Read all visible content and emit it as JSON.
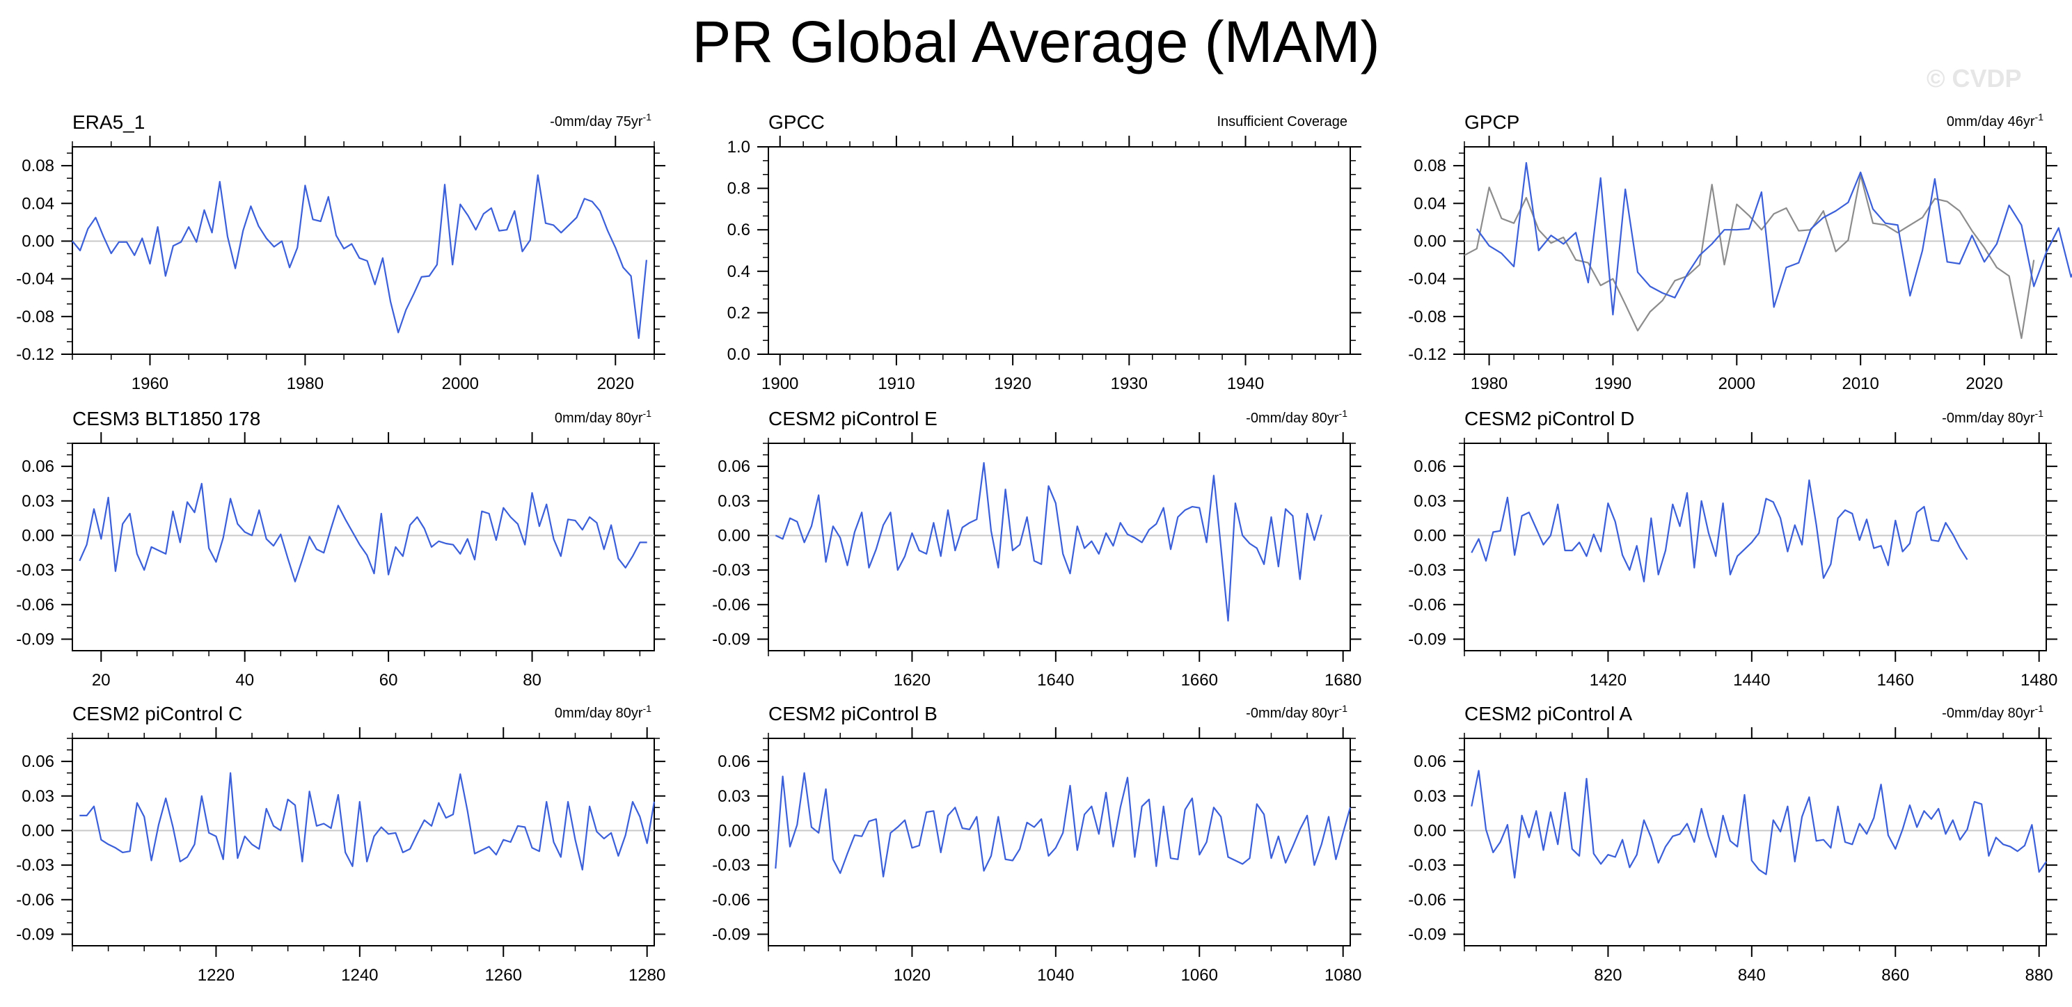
{
  "title": "PR Global Average (MAM)",
  "watermark": "© CVDP",
  "colors": {
    "series_primary": "#3a5fd9",
    "series_secondary": "#8c8c8c",
    "zero_line": "#c8c8c8"
  },
  "chart_data": [
    {
      "type": "line",
      "title": "ERA5_1",
      "trend_label": "-0mm/day 75yr",
      "trend_sup": "-1",
      "xlim": [
        1950,
        2025
      ],
      "ylim": [
        -0.12,
        0.1
      ],
      "xticks": [
        1960,
        1980,
        2000,
        2020
      ],
      "yticks": [
        "0.08",
        "0.04",
        "0.00",
        "-0.04",
        "-0.08",
        "-0.12"
      ],
      "x_start": 1950,
      "x_step": 1,
      "series": [
        {
          "values": [
            0.0,
            -0.01,
            0.013,
            0.025,
            0.005,
            -0.013,
            -0.001,
            -0.001,
            -0.015,
            0.003,
            -0.024,
            0.015,
            -0.037,
            -0.005,
            -0.001,
            0.015,
            -0.001,
            0.033,
            0.009,
            0.063,
            0.005,
            -0.029,
            0.011,
            0.037,
            0.016,
            0.003,
            -0.006,
            0.0,
            -0.028,
            -0.007,
            0.059,
            0.023,
            0.021,
            0.047,
            0.006,
            -0.008,
            -0.003,
            -0.018,
            -0.021,
            -0.046,
            -0.018,
            -0.064,
            -0.097,
            -0.073,
            -0.056,
            -0.038,
            -0.037,
            -0.025,
            0.06,
            -0.025,
            0.039,
            0.027,
            0.012,
            0.029,
            0.035,
            0.011,
            0.012,
            0.032,
            -0.011,
            0.001,
            0.07,
            0.019,
            0.017,
            0.009,
            0.017,
            0.025,
            0.045,
            0.042,
            0.032,
            0.011,
            -0.007,
            -0.028,
            -0.037,
            -0.103,
            -0.02
          ]
        }
      ]
    },
    {
      "type": "line",
      "title": "GPCC",
      "trend_label": "Insufficient Coverage",
      "xlim": [
        1899,
        1949
      ],
      "ylim": [
        0.0,
        1.0
      ],
      "xticks": [
        1900,
        1910,
        1920,
        1930,
        1940
      ],
      "yticks": [
        "1.0",
        "0.8",
        "0.6",
        "0.4",
        "0.2",
        "0.0"
      ],
      "x_start": 1900,
      "x_step": 1,
      "series": []
    },
    {
      "type": "line",
      "title": "GPCP",
      "trend_label": "0mm/day 46yr",
      "trend_sup": "-1",
      "xlim": [
        1978,
        2025
      ],
      "ylim": [
        -0.12,
        0.1
      ],
      "xticks": [
        1980,
        1990,
        2000,
        2010,
        2020
      ],
      "yticks": [
        "0.08",
        "0.04",
        "0.00",
        "-0.04",
        "-0.08",
        "-0.12"
      ],
      "x_start": 1979,
      "x_step": 1,
      "series": [
        {
          "color": "#8c8c8c",
          "x_start": 1978,
          "values": [
            -0.015,
            -0.008,
            0.057,
            0.024,
            0.019,
            0.046,
            0.012,
            -0.002,
            0.004,
            -0.02,
            -0.023,
            -0.047,
            -0.04,
            -0.067,
            -0.095,
            -0.075,
            -0.063,
            -0.042,
            -0.037,
            -0.025,
            0.06,
            -0.025,
            0.039,
            0.027,
            0.012,
            0.029,
            0.035,
            0.011,
            0.012,
            0.032,
            -0.011,
            0.001,
            0.07,
            0.019,
            0.017,
            0.009,
            0.017,
            0.025,
            0.045,
            0.042,
            0.032,
            0.011,
            -0.007,
            -0.028,
            -0.037,
            -0.103,
            -0.02
          ]
        },
        {
          "color": "#3a5fd9",
          "x_start": 1979,
          "values": [
            0.013,
            -0.005,
            -0.013,
            -0.027,
            0.083,
            -0.01,
            0.006,
            -0.003,
            0.009,
            -0.044,
            0.067,
            -0.078,
            0.055,
            -0.033,
            -0.048,
            -0.055,
            -0.06,
            -0.035,
            -0.015,
            -0.003,
            0.012,
            0.012,
            0.013,
            0.052,
            -0.07,
            -0.028,
            -0.023,
            0.013,
            0.025,
            0.032,
            0.041,
            0.073,
            0.034,
            0.019,
            0.017,
            -0.058,
            -0.01,
            0.066,
            -0.022,
            -0.024,
            0.006,
            -0.022,
            -0.003,
            0.038,
            0.017,
            -0.048,
            -0.012,
            0.014,
            -0.038,
            -0.011,
            -0.055,
            0.063
          ]
        }
      ]
    },
    {
      "type": "line",
      "title": "CESM3 BLT1850 178",
      "trend_label": "0mm/day 80yr",
      "trend_sup": "-1",
      "xlim": [
        16,
        97
      ],
      "ylim": [
        -0.1,
        0.08
      ],
      "xticks": [
        20,
        40,
        60,
        80
      ],
      "yticks": [
        "0.06",
        "0.03",
        "0.00",
        "-0.03",
        "-0.06",
        "-0.09"
      ],
      "x_start": 17,
      "x_step": 1,
      "series": [
        {
          "values": [
            -0.022,
            -0.008,
            0.023,
            -0.003,
            0.033,
            -0.031,
            0.01,
            0.019,
            -0.016,
            -0.03,
            -0.01,
            -0.013,
            -0.016,
            0.021,
            -0.006,
            0.029,
            0.02,
            0.045,
            -0.011,
            -0.023,
            -0.002,
            0.032,
            0.01,
            0.003,
            0.0,
            0.022,
            -0.003,
            -0.009,
            0.001,
            -0.02,
            -0.04,
            -0.021,
            -0.001,
            -0.012,
            -0.015,
            0.006,
            0.026,
            0.014,
            0.003,
            -0.008,
            -0.017,
            -0.033,
            0.019,
            -0.034,
            -0.01,
            -0.018,
            0.009,
            0.016,
            0.006,
            -0.01,
            -0.005,
            -0.007,
            -0.008,
            -0.016,
            -0.003,
            -0.021,
            0.021,
            0.019,
            -0.004,
            0.024,
            0.016,
            0.01,
            -0.008,
            0.037,
            0.008,
            0.027,
            -0.003,
            -0.018,
            0.014,
            0.013,
            0.005,
            0.016,
            0.011,
            -0.012,
            0.009,
            -0.02,
            -0.028,
            -0.018,
            -0.006,
            -0.006
          ]
        }
      ]
    },
    {
      "type": "line",
      "title": "CESM2 piControl E",
      "trend_label": "-0mm/day 80yr",
      "trend_sup": "-1",
      "xlim": [
        1600,
        1681
      ],
      "ylim": [
        -0.1,
        0.08
      ],
      "xticks": [
        1620,
        1640,
        1660,
        1680
      ],
      "yticks": [
        "0.06",
        "0.03",
        "0.00",
        "-0.03",
        "-0.06",
        "-0.09"
      ],
      "x_start": 1601,
      "x_step": 1,
      "series": [
        {
          "values": [
            0.0,
            -0.003,
            0.015,
            0.012,
            -0.006,
            0.008,
            0.035,
            -0.023,
            0.008,
            -0.002,
            -0.026,
            0.003,
            0.02,
            -0.028,
            -0.012,
            0.009,
            0.02,
            -0.03,
            -0.018,
            0.002,
            -0.013,
            -0.016,
            0.011,
            -0.018,
            0.022,
            -0.013,
            0.007,
            0.011,
            0.014,
            0.063,
            0.004,
            -0.028,
            0.04,
            -0.013,
            -0.008,
            0.016,
            -0.022,
            -0.025,
            0.043,
            0.028,
            -0.016,
            -0.033,
            0.008,
            -0.011,
            -0.005,
            -0.016,
            0.002,
            -0.009,
            0.011,
            0.001,
            -0.002,
            -0.006,
            0.005,
            0.01,
            0.024,
            -0.012,
            0.016,
            0.022,
            0.025,
            0.024,
            -0.006,
            0.052,
            -0.01,
            -0.074,
            0.028,
            0.0,
            -0.007,
            -0.011,
            -0.025,
            0.016,
            -0.027,
            0.023,
            0.017,
            -0.038,
            0.019,
            -0.004,
            0.018
          ]
        }
      ]
    },
    {
      "type": "line",
      "title": "CESM2 piControl D",
      "trend_label": "-0mm/day 80yr",
      "trend_sup": "-1",
      "xlim": [
        1400,
        1481
      ],
      "ylim": [
        -0.1,
        0.08
      ],
      "xticks": [
        1420,
        1440,
        1460,
        1480
      ],
      "yticks": [
        "0.06",
        "0.03",
        "0.00",
        "-0.03",
        "-0.06",
        "-0.09"
      ],
      "x_start": 1401,
      "x_step": 1,
      "series": [
        {
          "values": [
            -0.015,
            -0.003,
            -0.022,
            0.003,
            0.004,
            0.033,
            -0.017,
            0.017,
            0.02,
            0.006,
            -0.008,
            0.0,
            0.027,
            -0.013,
            -0.013,
            -0.006,
            -0.018,
            0.001,
            -0.014,
            0.028,
            0.012,
            -0.017,
            -0.03,
            -0.009,
            -0.04,
            0.015,
            -0.034,
            -0.013,
            0.027,
            0.008,
            0.037,
            -0.028,
            0.03,
            0.002,
            -0.018,
            0.028,
            -0.034,
            -0.018,
            -0.012,
            -0.006,
            0.002,
            0.032,
            0.029,
            0.015,
            -0.014,
            0.009,
            -0.008,
            0.048,
            0.009,
            -0.037,
            -0.025,
            0.015,
            0.022,
            0.019,
            -0.004,
            0.014,
            -0.011,
            -0.009,
            -0.026,
            0.013,
            -0.014,
            -0.007,
            0.02,
            0.025,
            -0.004,
            -0.005,
            0.011,
            0.001,
            -0.011,
            -0.021
          ]
        }
      ]
    },
    {
      "type": "line",
      "title": "CESM2 piControl C",
      "trend_label": "0mm/day 80yr",
      "trend_sup": "-1",
      "xlim": [
        1200,
        1281
      ],
      "ylim": [
        -0.1,
        0.08
      ],
      "xticks": [
        1220,
        1240,
        1260,
        1280
      ],
      "yticks": [
        "0.06",
        "0.03",
        "0.00",
        "-0.03",
        "-0.06",
        "-0.09"
      ],
      "x_start": 1201,
      "x_step": 1,
      "series": [
        {
          "values": [
            0.013,
            0.013,
            0.021,
            -0.008,
            -0.012,
            -0.015,
            -0.019,
            -0.018,
            0.024,
            0.012,
            -0.026,
            0.005,
            0.028,
            0.003,
            -0.027,
            -0.023,
            -0.012,
            0.03,
            -0.002,
            -0.005,
            -0.025,
            0.05,
            -0.024,
            -0.005,
            -0.012,
            -0.016,
            0.019,
            0.004,
            0.0,
            0.027,
            0.022,
            -0.027,
            0.034,
            0.004,
            0.006,
            0.002,
            0.031,
            -0.019,
            -0.031,
            0.025,
            -0.027,
            -0.005,
            0.003,
            -0.003,
            -0.002,
            -0.019,
            -0.016,
            -0.003,
            0.009,
            0.004,
            0.024,
            0.011,
            0.014,
            0.049,
            0.017,
            -0.02,
            -0.017,
            -0.014,
            -0.021,
            -0.008,
            -0.01,
            0.004,
            0.003,
            -0.015,
            -0.018,
            0.025,
            -0.01,
            -0.023,
            0.025,
            -0.008,
            -0.034,
            0.021,
            -0.001,
            -0.007,
            -0.002,
            -0.022,
            -0.004,
            0.025,
            0.012,
            -0.011,
            0.025
          ]
        }
      ]
    },
    {
      "type": "line",
      "title": "CESM2 piControl B",
      "trend_label": "-0mm/day 80yr",
      "trend_sup": "-1",
      "xlim": [
        1000,
        1081
      ],
      "ylim": [
        -0.1,
        0.08
      ],
      "xticks": [
        1020,
        1040,
        1060,
        1080
      ],
      "yticks": [
        "0.06",
        "0.03",
        "0.00",
        "-0.03",
        "-0.06",
        "-0.09"
      ],
      "x_start": 1001,
      "x_step": 1,
      "series": [
        {
          "values": [
            -0.033,
            0.047,
            -0.014,
            0.005,
            0.05,
            0.003,
            -0.002,
            0.036,
            -0.025,
            -0.037,
            -0.02,
            -0.004,
            -0.005,
            0.008,
            0.01,
            -0.04,
            -0.002,
            0.003,
            0.009,
            -0.015,
            -0.013,
            0.016,
            0.017,
            -0.019,
            0.013,
            0.02,
            0.002,
            0.001,
            0.012,
            -0.035,
            -0.022,
            0.012,
            -0.025,
            -0.026,
            -0.016,
            0.007,
            0.003,
            0.01,
            -0.022,
            -0.015,
            -0.002,
            0.039,
            -0.017,
            0.014,
            0.021,
            -0.003,
            0.033,
            -0.014,
            0.02,
            0.046,
            -0.023,
            0.021,
            0.027,
            -0.031,
            0.021,
            -0.024,
            -0.025,
            0.018,
            0.028,
            -0.021,
            -0.01,
            0.02,
            0.012,
            -0.023,
            -0.026,
            -0.029,
            -0.024,
            0.023,
            0.014,
            -0.024,
            -0.005,
            -0.028,
            -0.014,
            0.001,
            0.013,
            -0.03,
            -0.012,
            0.012,
            -0.025,
            -0.002,
            0.02
          ]
        }
      ]
    },
    {
      "type": "line",
      "title": "CESM2 piControl A",
      "trend_label": "-0mm/day 80yr",
      "trend_sup": "-1",
      "xlim": [
        800,
        881
      ],
      "ylim": [
        -0.1,
        0.08
      ],
      "xticks": [
        820,
        840,
        860,
        880
      ],
      "yticks": [
        "0.06",
        "0.03",
        "0.00",
        "-0.03",
        "-0.06",
        "-0.09"
      ],
      "x_start": 801,
      "x_step": 1,
      "series": [
        {
          "values": [
            0.021,
            0.052,
            0.001,
            -0.019,
            -0.01,
            0.005,
            -0.041,
            0.013,
            -0.006,
            0.017,
            -0.017,
            0.016,
            -0.012,
            0.033,
            -0.016,
            -0.022,
            0.045,
            -0.02,
            -0.029,
            -0.021,
            -0.023,
            -0.008,
            -0.032,
            -0.021,
            0.009,
            -0.006,
            -0.028,
            -0.014,
            -0.005,
            -0.003,
            0.006,
            -0.01,
            0.019,
            -0.005,
            -0.023,
            0.013,
            -0.009,
            -0.014,
            0.031,
            -0.026,
            -0.034,
            -0.038,
            0.009,
            -0.001,
            0.021,
            -0.027,
            0.012,
            0.029,
            -0.009,
            -0.008,
            -0.015,
            0.021,
            -0.01,
            -0.012,
            0.006,
            -0.003,
            0.011,
            0.04,
            -0.004,
            -0.016,
            0.001,
            0.022,
            0.003,
            0.017,
            0.01,
            0.019,
            -0.003,
            0.009,
            -0.008,
            0.001,
            0.025,
            0.023,
            -0.022,
            -0.006,
            -0.012,
            -0.014,
            -0.018,
            -0.013,
            0.005,
            -0.036,
            -0.027
          ]
        }
      ]
    }
  ]
}
